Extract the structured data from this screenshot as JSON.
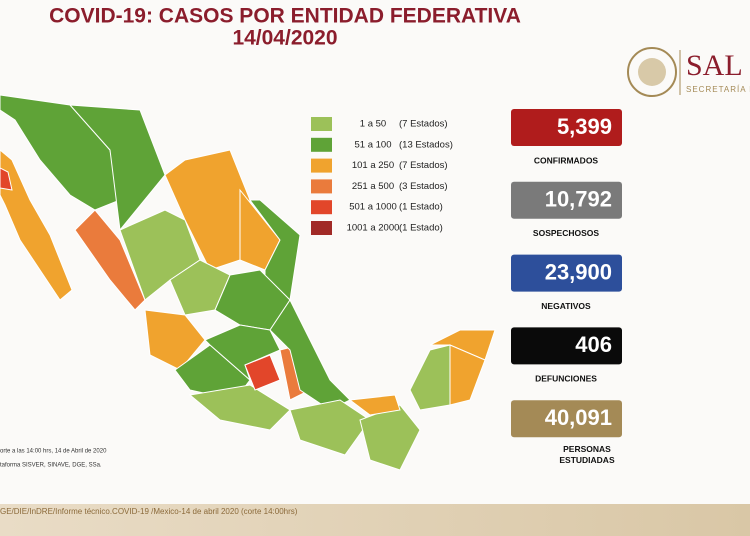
{
  "header": {
    "title": "COVID-19: CASOS POR ENTIDAD FEDERATIVA",
    "date": "14/04/2020",
    "logo": "SAL",
    "logo_subtitle": "SECRETARÍA D"
  },
  "legend": [
    {
      "range": "1 a 50",
      "count": "(7 Estados)",
      "color": "#9cc159"
    },
    {
      "range": "51 a 100",
      "count": "(13 Estados)",
      "color": "#5fa337"
    },
    {
      "range": "101 a 250",
      "count": "(7 Estados)",
      "color": "#f0a32e"
    },
    {
      "range": "251 a 500",
      "count": "(3 Estados)",
      "color": "#ea7b3c"
    },
    {
      "range": "501 a 1000",
      "count": "(1 Estado)",
      "color": "#e2462a"
    },
    {
      "range": "1001 a 2000",
      "count": "(1 Estado)",
      "color": "#a12a27"
    }
  ],
  "stats": [
    {
      "value": "5,399",
      "label": "CONFIRMADOS",
      "color": "#b01c1c"
    },
    {
      "value": "10,792",
      "label": "SOSPECHOSOS",
      "color": "#7a7a7a"
    },
    {
      "value": "23,900",
      "label": "NEGATIVOS",
      "color": "#2d4f9b"
    },
    {
      "value": "406",
      "label": "DEFUNCIONES",
      "color": "#0a0a0a"
    },
    {
      "value": "40,091",
      "label": "PERSONAS ESTUDIADAS",
      "color": "#a48a56"
    }
  ],
  "notes": [
    "orte a las 14:00 hrs, 14 de Abril de 2020",
    "taforma SISVER, SINAVE, DGE, SSa."
  ],
  "footer": "GE/DIE/InDRE/Informe técnico.COVID-19 /Mexico-14 de abril 2020 (corte 14:00hrs)"
}
